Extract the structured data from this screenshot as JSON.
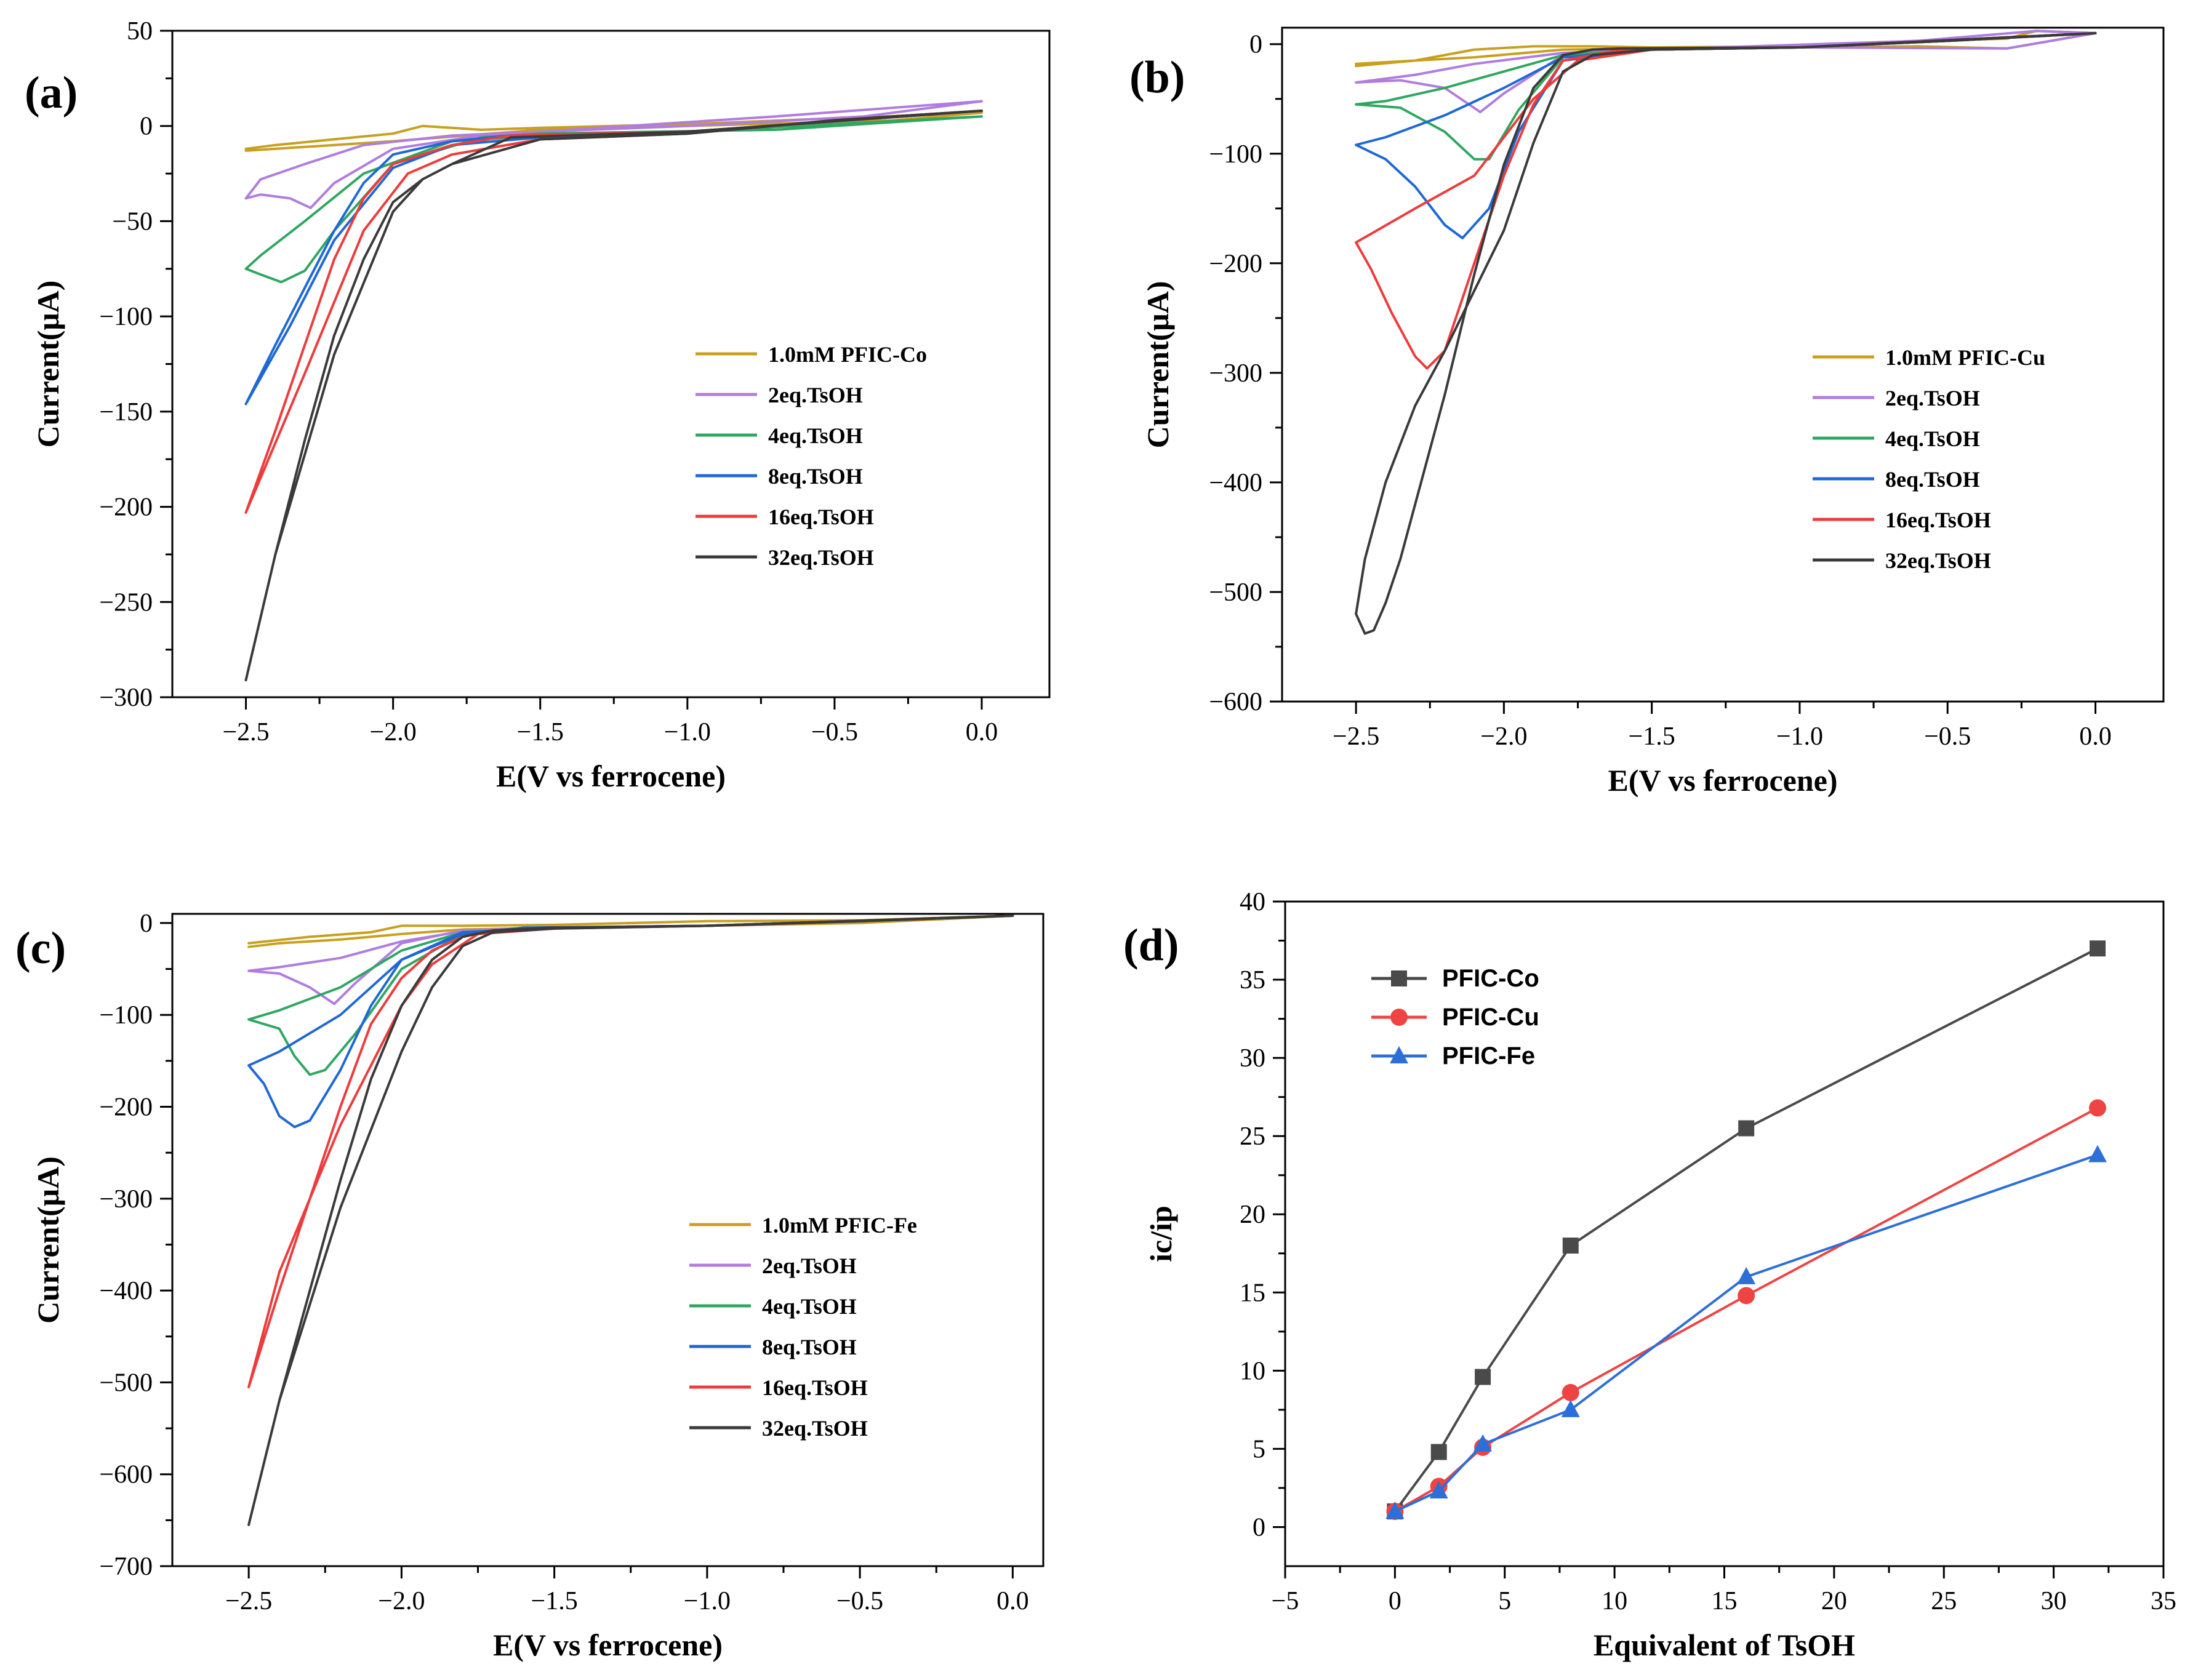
{
  "colors": {
    "yellow": "#C8A020",
    "purple": "#B07CE0",
    "green": "#2FA760",
    "blue": "#1E68D6",
    "red": "#EE3B3B",
    "black": "#3A3A3A",
    "d_co": "#4A4A4A",
    "d_cu": "#EE4444",
    "d_fe": "#2D6FD8"
  },
  "chart_data": [
    {
      "id": "a",
      "panel_label": "(a)",
      "type": "line",
      "xlabel": "E(V vs ferrocene)",
      "ylabel": "Current(μA)",
      "xlim": [
        -2.75,
        0.23
      ],
      "ylim": [
        -300,
        50
      ],
      "xticks": [
        -2.5,
        -2.0,
        -1.5,
        -1.0,
        -0.5,
        0.0
      ],
      "xtick_labels": [
        "−2.5",
        "−2.0",
        "−1.5",
        "−1.0",
        "−0.5",
        "0.0"
      ],
      "yticks": [
        -300,
        -250,
        -200,
        -150,
        -100,
        -50,
        0,
        50
      ],
      "ytick_labels": [
        "−300",
        "−250",
        "−200",
        "−150",
        "−100",
        "−50",
        "0",
        "50"
      ],
      "legend_position": "center-right",
      "series": [
        {
          "name": "1.0mM PFIC-Co",
          "color": "yellow",
          "x": [
            -2.5,
            -2.4,
            -2.2,
            -2.0,
            -1.9,
            -1.7,
            -1.5,
            -1.0,
            -0.5,
            0.0,
            -0.3,
            -1.0,
            -1.5,
            -2.0,
            -2.3,
            -2.5
          ],
          "y": [
            -12,
            -10,
            -7,
            -4,
            0,
            -2,
            -1,
            1,
            4,
            7,
            3,
            0,
            -2,
            -8,
            -11,
            -13
          ]
        },
        {
          "name": "2eq.TsOH",
          "color": "purple",
          "x": [
            -2.5,
            -2.45,
            -2.35,
            -2.28,
            -2.2,
            -2.0,
            -1.7,
            -1.5,
            -0.7,
            0.0,
            -0.4,
            -1.0,
            -1.5,
            -1.8,
            -2.1,
            -2.3,
            -2.45,
            -2.5
          ],
          "y": [
            -38,
            -36,
            -38,
            -43,
            -30,
            -12,
            -5,
            -3,
            5,
            13,
            5,
            0,
            -3,
            -5,
            -10,
            -20,
            -28,
            -38
          ]
        },
        {
          "name": "4eq.TsOH",
          "color": "green",
          "x": [
            -2.5,
            -2.45,
            -2.38,
            -2.3,
            -2.2,
            -2.0,
            -1.7,
            -1.5,
            -0.7,
            0.0,
            -0.5,
            -1.0,
            -1.5,
            -1.8,
            -2.1,
            -2.3,
            -2.45,
            -2.5
          ],
          "y": [
            -75,
            -78,
            -82,
            -76,
            -55,
            -20,
            -6,
            -4,
            -2,
            5,
            1,
            -3,
            -5,
            -8,
            -25,
            -50,
            -68,
            -75
          ]
        },
        {
          "name": "8eq.TsOH",
          "color": "blue",
          "x": [
            -2.5,
            -2.4,
            -2.3,
            -2.2,
            -2.1,
            -2.0,
            -1.8,
            -1.6,
            -1.0,
            0.0,
            -0.5,
            -1.0,
            -1.5,
            -1.8,
            -2.0,
            -2.2,
            -2.35,
            -2.5
          ],
          "y": [
            -146,
            -115,
            -85,
            -55,
            -30,
            -15,
            -8,
            -5,
            -3,
            8,
            3,
            -4,
            -6,
            -10,
            -22,
            -60,
            -105,
            -146
          ]
        },
        {
          "name": "16eq.TsOH",
          "color": "red",
          "x": [
            -2.5,
            -2.4,
            -2.3,
            -2.2,
            -2.1,
            -2.0,
            -1.8,
            -1.6,
            -1.0,
            0.0,
            -0.5,
            -1.0,
            -1.5,
            -1.8,
            -1.95,
            -2.1,
            -2.3,
            -2.5
          ],
          "y": [
            -203,
            -160,
            -115,
            -70,
            -38,
            -20,
            -10,
            -5,
            -3,
            8,
            3,
            -4,
            -7,
            -15,
            -25,
            -55,
            -130,
            -203
          ]
        },
        {
          "name": "32eq.TsOH",
          "color": "black",
          "x": [
            -2.5,
            -2.4,
            -2.3,
            -2.2,
            -2.1,
            -2.0,
            -1.9,
            -1.8,
            -1.6,
            -1.0,
            0.0,
            -0.5,
            -1.0,
            -1.5,
            -1.8,
            -1.9,
            -2.0,
            -2.2,
            -2.4,
            -2.5
          ],
          "y": [
            -291,
            -225,
            -165,
            -110,
            -70,
            -40,
            -28,
            -20,
            -6,
            -3,
            8,
            3,
            -4,
            -7,
            -20,
            -28,
            -45,
            -120,
            -225,
            -291
          ]
        }
      ]
    },
    {
      "id": "b",
      "panel_label": "(b)",
      "type": "line",
      "xlabel": "E(V vs ferrocene)",
      "ylabel": "Current(μA)",
      "xlim": [
        -2.75,
        0.23
      ],
      "ylim": [
        -600,
        15
      ],
      "xticks": [
        -2.5,
        -2.0,
        -1.5,
        -1.0,
        -0.5,
        0.0
      ],
      "xtick_labels": [
        "−2.5",
        "−2.0",
        "−1.5",
        "−1.0",
        "−0.5",
        "0.0"
      ],
      "yticks": [
        -600,
        -500,
        -400,
        -300,
        -200,
        -100,
        0
      ],
      "ytick_labels": [
        "−600",
        "−500",
        "−400",
        "−300",
        "−200",
        "−100",
        "0"
      ],
      "legend_position": "center-right",
      "series": [
        {
          "name": "1.0mM PFIC-Cu",
          "color": "yellow",
          "x": [
            -2.5,
            -2.3,
            -2.1,
            -1.9,
            -1.7,
            -1.5,
            -1.0,
            -0.6,
            -0.3,
            -0.2,
            0.0,
            -0.3,
            -0.6,
            -1.0,
            -1.5,
            -1.8,
            -2.1,
            -2.3,
            -2.5
          ],
          "y": [
            -18,
            -15,
            -5,
            -2,
            -2,
            -3,
            -2,
            3,
            5,
            12,
            10,
            -4,
            -2,
            -3,
            -4,
            -5,
            -12,
            -15,
            -20
          ]
        },
        {
          "name": "2eq.TsOH",
          "color": "purple",
          "x": [
            -2.5,
            -2.35,
            -2.2,
            -2.08,
            -2.0,
            -1.8,
            -1.5,
            -0.6,
            -0.2,
            0.0,
            -0.3,
            -1.0,
            -1.5,
            -1.8,
            -2.1,
            -2.3,
            -2.5
          ],
          "y": [
            -35,
            -33,
            -40,
            -62,
            -45,
            -10,
            -5,
            3,
            12,
            10,
            -4,
            -3,
            -5,
            -8,
            -18,
            -28,
            -35
          ]
        },
        {
          "name": "4eq.TsOH",
          "color": "green",
          "x": [
            -2.5,
            -2.35,
            -2.2,
            -2.1,
            -2.05,
            -1.95,
            -1.8,
            -1.5,
            -1.0,
            0.0,
            -0.5,
            -1.0,
            -1.5,
            -1.8,
            -2.0,
            -2.2,
            -2.4,
            -2.5
          ],
          "y": [
            -55,
            -58,
            -80,
            -105,
            -105,
            -60,
            -12,
            -5,
            -3,
            10,
            3,
            -3,
            -5,
            -10,
            -25,
            -40,
            -52,
            -55
          ]
        },
        {
          "name": "8eq.TsOH",
          "color": "blue",
          "x": [
            -2.5,
            -2.4,
            -2.3,
            -2.2,
            -2.14,
            -2.05,
            -1.95,
            -1.8,
            -1.5,
            -1.0,
            0.0,
            -0.5,
            -1.0,
            -1.5,
            -1.8,
            -2.0,
            -2.2,
            -2.4,
            -2.5
          ],
          "y": [
            -92,
            -105,
            -130,
            -165,
            -177,
            -150,
            -80,
            -15,
            -5,
            -3,
            10,
            3,
            -3,
            -5,
            -12,
            -40,
            -65,
            -85,
            -92
          ]
        },
        {
          "name": "16eq.TsOH",
          "color": "red",
          "x": [
            -2.5,
            -2.45,
            -2.38,
            -2.3,
            -2.26,
            -2.2,
            -2.1,
            -2.0,
            -1.9,
            -1.8,
            -1.6,
            -1.0,
            0.0,
            -0.5,
            -1.0,
            -1.5,
            -1.75,
            -1.9,
            -2.1,
            -2.3,
            -2.5
          ],
          "y": [
            -181,
            -205,
            -245,
            -285,
            -296,
            -280,
            -200,
            -120,
            -55,
            -15,
            -5,
            -3,
            10,
            3,
            -3,
            -5,
            -15,
            -50,
            -120,
            -150,
            -181
          ]
        },
        {
          "name": "32eq.TsOH",
          "color": "black",
          "x": [
            -2.5,
            -2.47,
            -2.44,
            -2.4,
            -2.35,
            -2.3,
            -2.2,
            -2.1,
            -2.0,
            -1.9,
            -1.8,
            -1.7,
            -1.6,
            -1.0,
            0.0,
            -0.5,
            -1.0,
            -1.5,
            -1.7,
            -1.8,
            -1.9,
            -2.0,
            -2.2,
            -2.3,
            -2.4,
            -2.47,
            -2.5
          ],
          "y": [
            -520,
            -538,
            -535,
            -510,
            -470,
            -420,
            -320,
            -210,
            -110,
            -40,
            -10,
            -5,
            -4,
            -3,
            10,
            3,
            -3,
            -5,
            -10,
            -25,
            -90,
            -170,
            -280,
            -330,
            -400,
            -470,
            -520
          ]
        }
      ]
    },
    {
      "id": "c",
      "panel_label": "(c)",
      "type": "line",
      "xlabel": "E(V vs ferrocene)",
      "ylabel": "Current(μA)",
      "xlim": [
        -2.75,
        0.1
      ],
      "ylim": [
        -700,
        10
      ],
      "xticks": [
        -2.5,
        -2.0,
        -1.5,
        -1.0,
        -0.5,
        0.0
      ],
      "xtick_labels": [
        "−2.5",
        "−2.0",
        "−1.5",
        "−1.0",
        "−0.5",
        "0.0"
      ],
      "yticks": [
        -700,
        -600,
        -500,
        -400,
        -300,
        -200,
        -100,
        0
      ],
      "ytick_labels": [
        "−700",
        "−600",
        "−500",
        "−400",
        "−300",
        "−200",
        "−100",
        "0"
      ],
      "legend_position": "center-right",
      "series": [
        {
          "name": "1.0mM PFIC-Fe",
          "color": "yellow",
          "x": [
            -2.5,
            -2.3,
            -2.1,
            -2.0,
            -1.8,
            -1.5,
            -1.0,
            -0.5,
            0.0,
            -0.5,
            -1.0,
            -1.5,
            -1.8,
            -2.0,
            -2.2,
            -2.4,
            -2.5
          ],
          "y": [
            -22,
            -15,
            -10,
            -3,
            -3,
            -2,
            2,
            3,
            8,
            0,
            -3,
            -5,
            -7,
            -12,
            -18,
            -22,
            -26
          ]
        },
        {
          "name": "2eq.TsOH",
          "color": "purple",
          "x": [
            -2.5,
            -2.4,
            -2.3,
            -2.22,
            -2.15,
            -2.0,
            -1.8,
            -1.5,
            -1.0,
            0.0,
            -0.5,
            -1.0,
            -1.5,
            -1.8,
            -2.0,
            -2.2,
            -2.4,
            -2.5
          ],
          "y": [
            -52,
            -55,
            -70,
            -88,
            -65,
            -22,
            -8,
            -5,
            -3,
            8,
            2,
            -3,
            -5,
            -9,
            -20,
            -38,
            -48,
            -52
          ]
        },
        {
          "name": "4eq.TsOH",
          "color": "green",
          "x": [
            -2.5,
            -2.4,
            -2.35,
            -2.3,
            -2.25,
            -2.15,
            -2.0,
            -1.8,
            -1.5,
            -1.0,
            0.0,
            -0.5,
            -1.0,
            -1.5,
            -1.8,
            -2.0,
            -2.2,
            -2.4,
            -2.5
          ],
          "y": [
            -105,
            -115,
            -145,
            -165,
            -160,
            -120,
            -50,
            -12,
            -5,
            -3,
            8,
            2,
            -3,
            -5,
            -10,
            -30,
            -70,
            -95,
            -105
          ]
        },
        {
          "name": "8eq.TsOH",
          "color": "blue",
          "x": [
            -2.5,
            -2.45,
            -2.4,
            -2.35,
            -2.3,
            -2.2,
            -2.1,
            -2.0,
            -1.8,
            -1.6,
            -1.0,
            0.0,
            -0.5,
            -1.0,
            -1.5,
            -1.8,
            -2.0,
            -2.2,
            -2.4,
            -2.5
          ],
          "y": [
            -155,
            -175,
            -210,
            -222,
            -215,
            -160,
            -90,
            -40,
            -12,
            -5,
            -3,
            8,
            2,
            -3,
            -5,
            -10,
            -40,
            -100,
            -140,
            -155
          ]
        },
        {
          "name": "16eq.TsOH",
          "color": "red",
          "x": [
            -2.5,
            -2.4,
            -2.3,
            -2.2,
            -2.1,
            -2.0,
            -1.9,
            -1.8,
            -1.7,
            -1.5,
            -1.0,
            0.0,
            -0.5,
            -1.0,
            -1.5,
            -1.75,
            -1.9,
            -2.0,
            -2.2,
            -2.4,
            -2.5
          ],
          "y": [
            -505,
            -400,
            -300,
            -200,
            -110,
            -60,
            -30,
            -15,
            -8,
            -5,
            -3,
            8,
            2,
            -3,
            -6,
            -12,
            -45,
            -90,
            -220,
            -380,
            -505
          ]
        },
        {
          "name": "32eq.TsOH",
          "color": "black",
          "x": [
            -2.5,
            -2.4,
            -2.3,
            -2.2,
            -2.1,
            -2.0,
            -1.9,
            -1.8,
            -1.7,
            -1.5,
            -1.0,
            0.0,
            -0.5,
            -1.0,
            -1.5,
            -1.7,
            -1.8,
            -1.9,
            -2.0,
            -2.2,
            -2.4,
            -2.5
          ],
          "y": [
            -655,
            -520,
            -400,
            -280,
            -170,
            -90,
            -40,
            -15,
            -8,
            -5,
            -3,
            8,
            2,
            -3,
            -6,
            -10,
            -25,
            -70,
            -140,
            -310,
            -520,
            -655
          ]
        }
      ]
    },
    {
      "id": "d",
      "panel_label": "(d)",
      "type": "line",
      "xlabel": "Equivalent of TsOH",
      "ylabel": "ic/ip",
      "xlim": [
        -5,
        35
      ],
      "ylim": [
        -2.5,
        40
      ],
      "xticks": [
        -5,
        0,
        5,
        10,
        15,
        20,
        25,
        30,
        35
      ],
      "xtick_labels": [
        "−5",
        "0",
        "5",
        "10",
        "15",
        "20",
        "25",
        "30",
        "35"
      ],
      "yticks": [
        0,
        5,
        10,
        15,
        20,
        25,
        30,
        35,
        40
      ],
      "ytick_labels": [
        "0",
        "5",
        "10",
        "15",
        "20",
        "25",
        "30",
        "35",
        "40"
      ],
      "legend_position": "top-left",
      "series": [
        {
          "name": "PFIC-Co",
          "color": "d_co",
          "marker": "square",
          "x": [
            0,
            2,
            4,
            8,
            16,
            32
          ],
          "y": [
            1.0,
            4.8,
            9.6,
            18.0,
            25.5,
            37.0
          ]
        },
        {
          "name": "PFIC-Cu",
          "color": "d_cu",
          "marker": "circle",
          "x": [
            0,
            2,
            4,
            8,
            16,
            32
          ],
          "y": [
            1.0,
            2.6,
            5.1,
            8.6,
            14.8,
            26.8
          ]
        },
        {
          "name": "PFIC-Fe",
          "color": "d_fe",
          "marker": "triangle",
          "x": [
            0,
            2,
            4,
            8,
            16,
            32
          ],
          "y": [
            1.0,
            2.3,
            5.3,
            7.5,
            16.0,
            23.8
          ]
        }
      ]
    }
  ]
}
